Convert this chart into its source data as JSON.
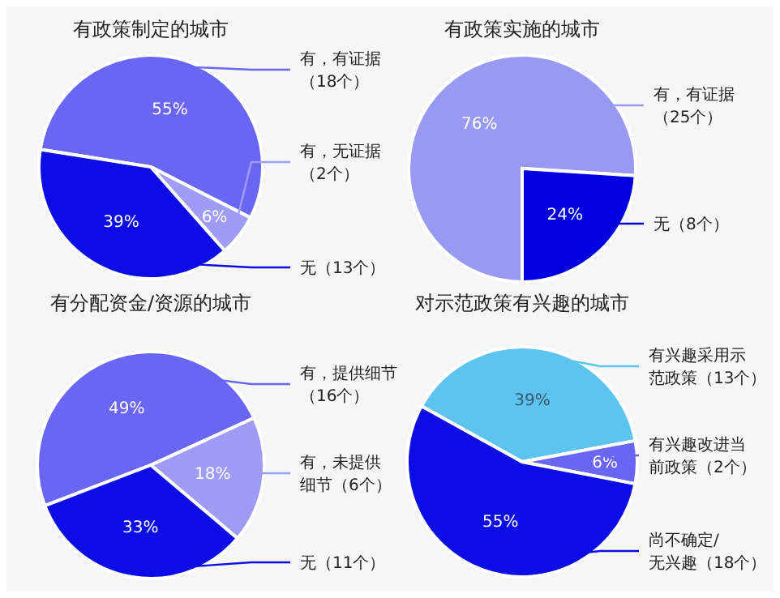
{
  "chart_data": [
    {
      "type": "pie",
      "title": "有政策制定的城市",
      "categories": [
        "有，有证据（18个）",
        "有，无证据（2个）",
        "无（13个）"
      ],
      "values": [
        55,
        6,
        39
      ],
      "value_labels": [
        "55%",
        "6%",
        "39%"
      ],
      "colors": [
        "#6a66f4",
        "#9e9cf4",
        "#0c0ce6"
      ]
    },
    {
      "type": "pie",
      "title": "有政策实施的城市",
      "categories": [
        "有，有证据（25个）",
        "无（8个）"
      ],
      "values": [
        76,
        24
      ],
      "value_labels": [
        "76%",
        "24%"
      ],
      "colors": [
        "#9a99f2",
        "#0000e0"
      ]
    },
    {
      "type": "pie",
      "title": "有分配资金/资源的城市",
      "categories": [
        "有，提供细节（16个）",
        "有，未提供细节（6个）",
        "无（11个）"
      ],
      "values": [
        49,
        18,
        33
      ],
      "value_labels": [
        "49%",
        "18%",
        "33%"
      ],
      "colors": [
        "#6a66f4",
        "#9e9cf4",
        "#0c0ce6"
      ]
    },
    {
      "type": "pie",
      "title": "对示范政策有兴趣的城市",
      "categories": [
        "有兴趣采用示范政策（13个）",
        "有兴趣改进当前政策（2个）",
        "尚不确定/无兴趣（18个）"
      ],
      "values": [
        39,
        6,
        55
      ],
      "value_labels": [
        "39%",
        "6%",
        "55%"
      ],
      "colors": [
        "#5cc4ee",
        "#6a66f4",
        "#0c0ce6"
      ]
    }
  ]
}
